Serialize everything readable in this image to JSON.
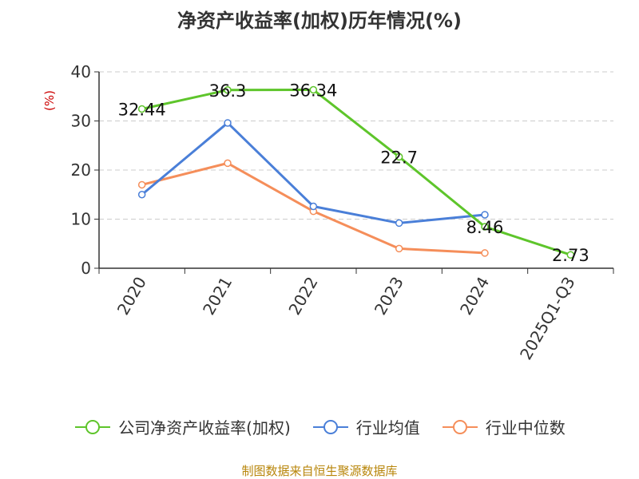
{
  "title": "净资产收益率(加权)历年情况(%)",
  "source": "制图数据来自恒生聚源数据库",
  "colors": {
    "company": "#5ec52b",
    "avg": "#4a7fd8",
    "median": "#f58e5a",
    "grid": "#cccccc",
    "axis": "#333333",
    "ylabel": "#cc0000"
  },
  "chart_data": {
    "type": "line",
    "title": "净资产收益率(加权)历年情况(%)",
    "ylabel": "(%)",
    "xlabel": "",
    "ylim": [
      0,
      40
    ],
    "yticks": [
      0,
      10,
      20,
      30,
      40
    ],
    "categories": [
      "2020",
      "2021",
      "2022",
      "2023",
      "2024",
      "2025Q1-Q3"
    ],
    "grid": true,
    "legend": "bottom",
    "series": [
      {
        "name": "公司净资产收益率(加权)",
        "color_key": "company",
        "values": [
          32.44,
          36.3,
          36.34,
          22.7,
          8.46,
          2.73
        ],
        "labels": [
          "32.44",
          "36.3",
          "36.34",
          "22.7",
          "8.46",
          "2.73"
        ]
      },
      {
        "name": "行业均值",
        "color_key": "avg",
        "values": [
          15.0,
          29.6,
          12.6,
          9.2,
          10.9,
          null
        ],
        "labels": []
      },
      {
        "name": "行业中位数",
        "color_key": "median",
        "values": [
          17.0,
          21.4,
          11.6,
          4.0,
          3.1,
          null
        ],
        "labels": []
      }
    ]
  }
}
